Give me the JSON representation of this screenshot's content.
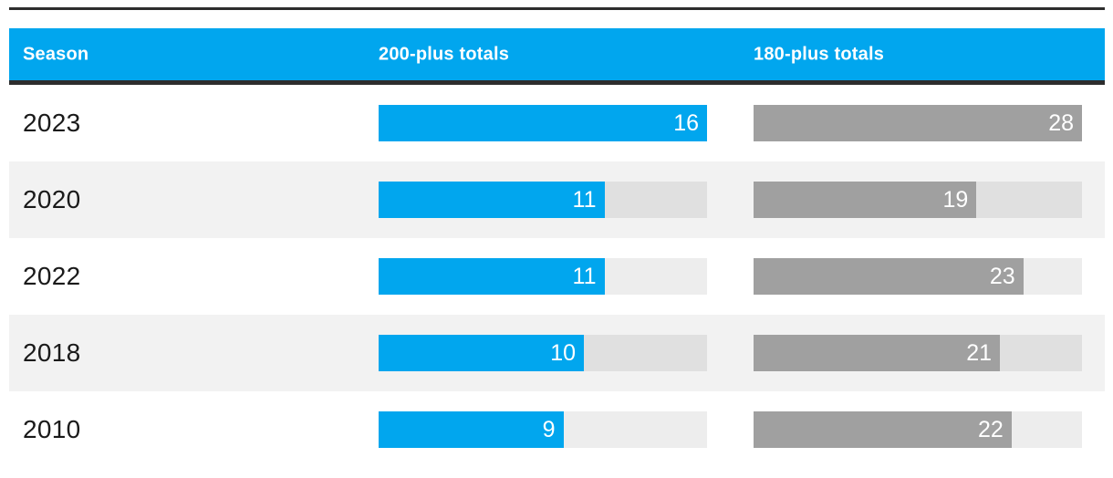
{
  "colors": {
    "accent_blue": "#01a6ee",
    "bar_gray": "#a0a0a0",
    "row_stripe": "#f2f2f2",
    "rule_dark": "#2d2d2d",
    "value_text": "#ffffff",
    "label_text": "#1a1a1a"
  },
  "header": {
    "season_label": "Season",
    "col200_label": "200-plus totals",
    "col180_label": "180-plus totals"
  },
  "chart_data": {
    "type": "bar",
    "orientation": "horizontal",
    "layout": "table rows with inline bars; each series scaled independently to its own max (full track width)",
    "categories": [
      "2023",
      "2020",
      "2022",
      "2018",
      "2010"
    ],
    "series": [
      {
        "name": "200-plus totals",
        "values": [
          16,
          11,
          11,
          10,
          9
        ],
        "scale_max": 16,
        "color": "#01a6ee"
      },
      {
        "name": "180-plus totals",
        "values": [
          28,
          19,
          23,
          21,
          22
        ],
        "scale_max": 28,
        "color": "#a0a0a0"
      }
    ],
    "xlabel": "Season",
    "value_labels": "shown in white, right-aligned inside each bar",
    "grid": false,
    "legend": "column headers act as series labels"
  }
}
